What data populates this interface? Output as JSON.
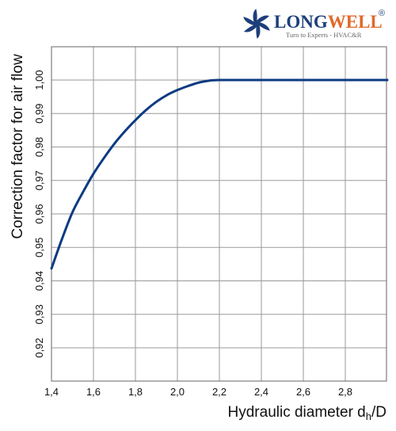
{
  "logo": {
    "name_part1": "LONG",
    "name_part2": "WELL",
    "registered": "®",
    "tagline": "Turn to Experts - HVAC&R",
    "colors": {
      "blue": "#1d3f7a",
      "orange": "#e0692a",
      "grey": "#666666"
    }
  },
  "chart_data": {
    "type": "line",
    "xlabel_main": "Hydraulic diameter d",
    "xlabel_sub": "h",
    "xlabel_tail": "/D",
    "ylabel": "Correction factor for air flow",
    "xlim": [
      1.4,
      3.0
    ],
    "ylim": [
      0.91,
      1.01
    ],
    "x_ticks": [
      "1,4",
      "1,6",
      "1,8",
      "2,0",
      "2,2",
      "2,4",
      "2,6",
      "2,8"
    ],
    "x_tick_values": [
      1.4,
      1.6,
      1.8,
      2.0,
      2.2,
      2.4,
      2.6,
      2.8
    ],
    "y_ticks": [
      "0,92",
      "0,93",
      "0,94",
      "0,95",
      "0,96",
      "0,97",
      "0,98",
      "0,99",
      "1,00"
    ],
    "y_tick_values": [
      0.92,
      0.93,
      0.94,
      0.95,
      0.96,
      0.97,
      0.98,
      0.99,
      1.0
    ],
    "grid": true,
    "series": [
      {
        "color": "#0c3a82",
        "x": [
          1.4,
          1.45,
          1.5,
          1.55,
          1.6,
          1.65,
          1.7,
          1.75,
          1.8,
          1.85,
          1.9,
          1.95,
          2.0,
          2.05,
          2.1,
          2.15,
          2.2,
          2.4,
          2.6,
          2.8,
          3.0
        ],
        "y": [
          0.9437,
          0.9525,
          0.9605,
          0.9665,
          0.972,
          0.9767,
          0.981,
          0.9847,
          0.988,
          0.991,
          0.9935,
          0.9955,
          0.997,
          0.9982,
          0.9992,
          0.9998,
          1.0,
          1.0,
          1.0,
          1.0,
          1.0
        ]
      }
    ]
  }
}
